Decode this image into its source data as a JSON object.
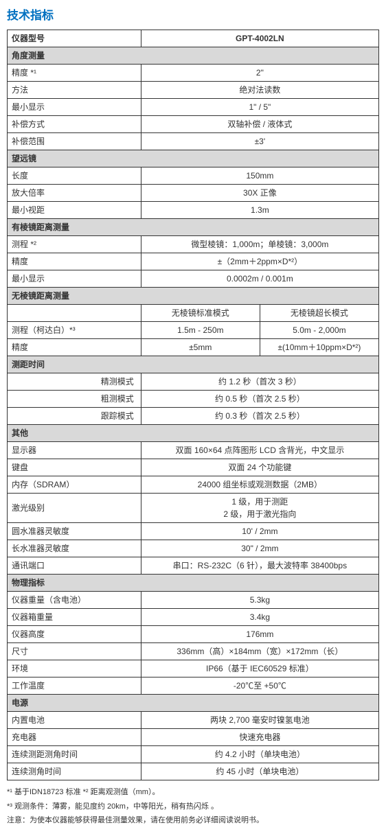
{
  "title": "技术指标",
  "model_label": "仪器型号",
  "model_value": "GPT-4002LN",
  "sections": {
    "angle": {
      "header": "角度测量",
      "rows": [
        {
          "label": "精度 *¹",
          "value": "2\""
        },
        {
          "label": "方法",
          "value": "绝对法读数"
        },
        {
          "label": "最小显示",
          "value": "1\"  /  5\""
        },
        {
          "label": "补偿方式",
          "value": "双轴补偿 / 液体式"
        },
        {
          "label": "补偿范围",
          "value": "±3'"
        }
      ]
    },
    "telescope": {
      "header": "望远镜",
      "rows": [
        {
          "label": "长度",
          "value": "150mm"
        },
        {
          "label": "放大倍率",
          "value": "30X 正像"
        },
        {
          "label": "最小视距",
          "value": "1.3m"
        }
      ]
    },
    "prism": {
      "header": "有棱镜距离测量",
      "rows": [
        {
          "label": "测程 *²",
          "value": "微型棱镜：1,000m；单棱镜：3,000m"
        },
        {
          "label": "精度",
          "value": "±（2mm＋2ppm×D*²）"
        },
        {
          "label": "最小显示",
          "value": "0.0002m / 0.001m"
        }
      ]
    },
    "noprism": {
      "header": "无棱镜距离测量",
      "col1": "无棱镜标准模式",
      "col2": "无棱镜超长模式",
      "rows": [
        {
          "label": "测程（柯达白）*³",
          "v1": "1.5m - 250m",
          "v2": "5.0m - 2,000m"
        },
        {
          "label": "精度",
          "v1": "±5mm",
          "v2": "±(10mm＋10ppm×D*²)"
        }
      ]
    },
    "timing": {
      "header": "测距时间",
      "rows": [
        {
          "label": "精测模式",
          "value": "约 1.2 秒（首次 3 秒）"
        },
        {
          "label": "粗测模式",
          "value": "约 0.5 秒（首次 2.5 秒）"
        },
        {
          "label": "跟踪模式",
          "value": "约 0.3 秒（首次 2.5 秒）"
        }
      ]
    },
    "other": {
      "header": "其他",
      "rows": [
        {
          "label": "显示器",
          "value": "双面 160×64 点阵图形 LCD 含背光，中文显示"
        },
        {
          "label": "键盘",
          "value": "双面 24 个功能键"
        },
        {
          "label": "内存（SDRAM）",
          "value": "24000 组坐标或观测数据（2MB）"
        },
        {
          "label": "激光级别",
          "value": "1 级，用于测距\n2 级，用于激光指向"
        },
        {
          "label": "圆水准器灵敏度",
          "value": "10' / 2mm"
        },
        {
          "label": "长水准器灵敏度",
          "value": "30\" / 2mm"
        },
        {
          "label": "通讯端口",
          "value": "串口：RS-232C（6 针），最大波特率 38400bps"
        }
      ]
    },
    "physical": {
      "header": "物理指标",
      "rows": [
        {
          "label": "仪器重量（含电池）",
          "value": "5.3kg"
        },
        {
          "label": "仪器箱重量",
          "value": "3.4kg"
        },
        {
          "label": "仪器高度",
          "value": "176mm"
        },
        {
          "label": "尺寸",
          "value": "336mm（高）×184mm（宽）×172mm（长）"
        },
        {
          "label": "环境",
          "value": "IP66（基于 IEC60529 标准）"
        },
        {
          "label": "工作温度",
          "value": "-20℃至 +50℃"
        }
      ]
    },
    "power": {
      "header": "电源",
      "rows": [
        {
          "label": "内置电池",
          "value": "两块 2,700 毫安时镍氢电池"
        },
        {
          "label": "充电器",
          "value": "快速充电器"
        },
        {
          "label": "连续测距测角时间",
          "value": "约 4.2 小时（单块电池）"
        },
        {
          "label": "连续测角时间",
          "value": "约 45 小时（单块电池）"
        }
      ]
    }
  },
  "footnotes": [
    "*¹ 基于IDN18723 标准   *² 距离观测值（mm）。",
    "*³ 观测条件：薄雾，能见度约 20km，中等阳光，稍有热闪烁  。",
    "注意：为使本仪器能够获得最佳测量效果，请在使用前务必详细阅读说明书。"
  ]
}
